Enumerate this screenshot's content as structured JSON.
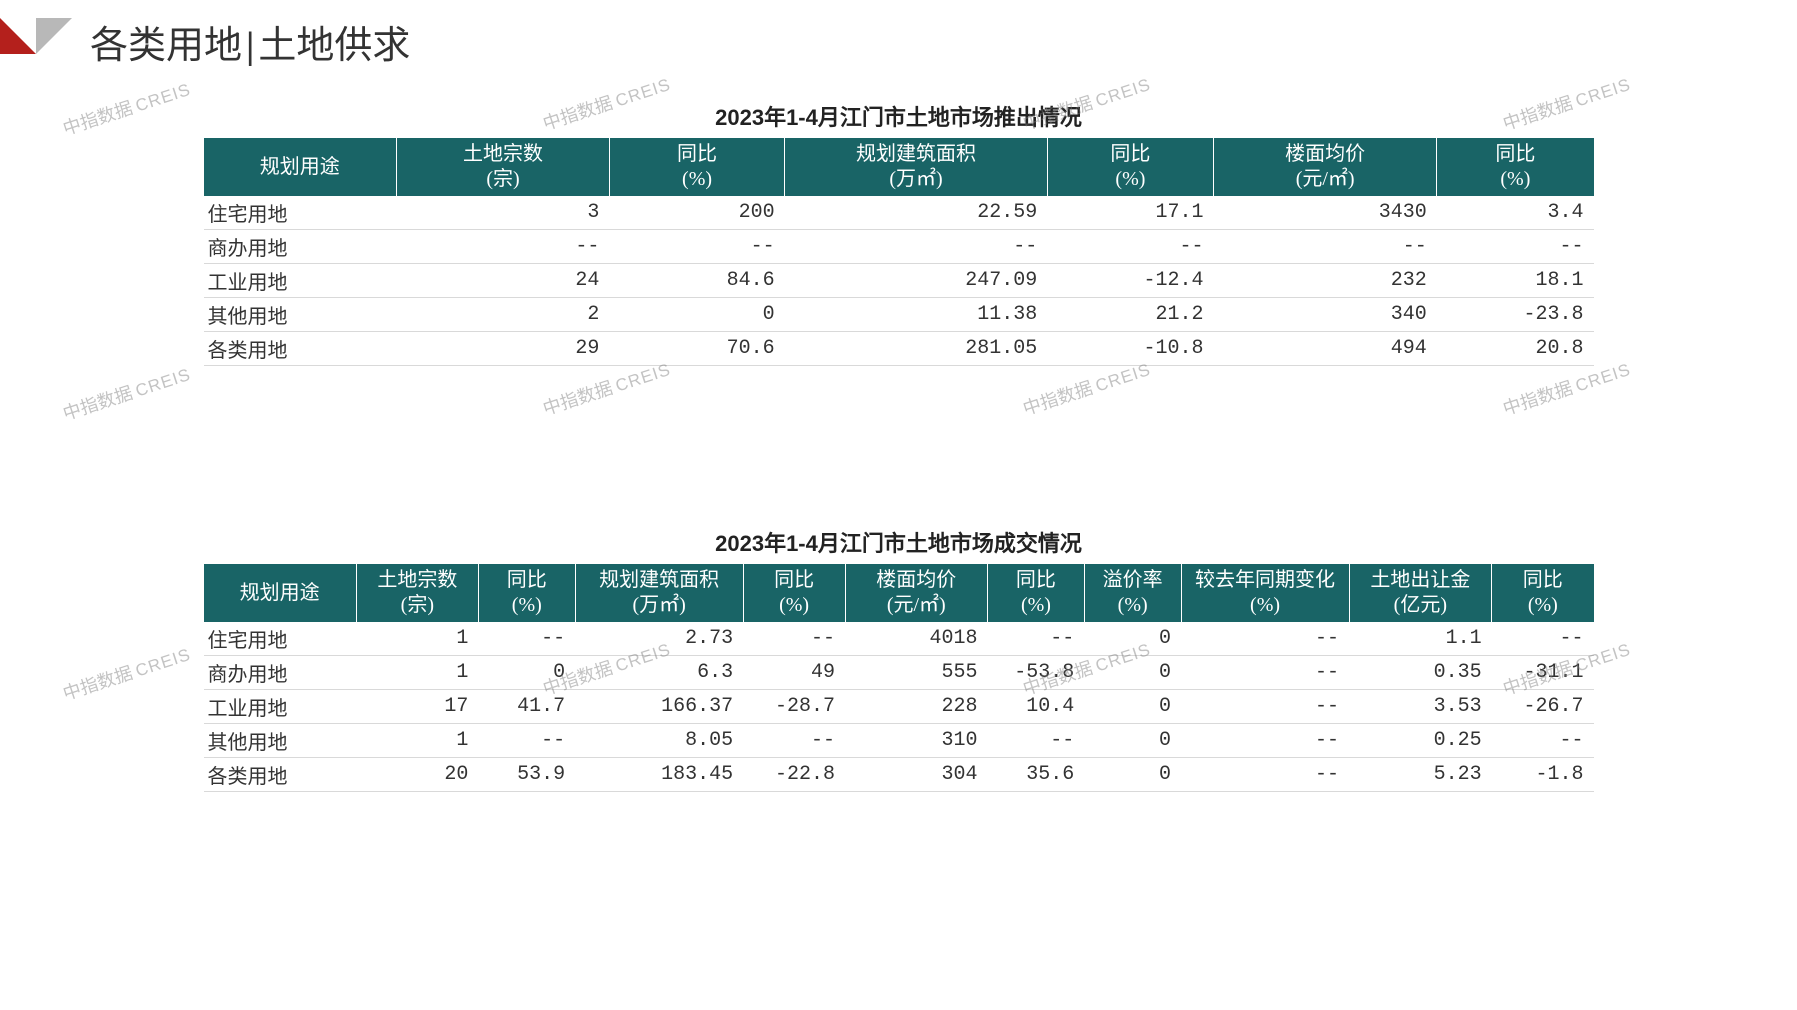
{
  "header": {
    "title_left": "各类用地",
    "title_right": "土地供求"
  },
  "watermark": {
    "cn": "中指数据",
    "en": "CREIS"
  },
  "table1": {
    "title": "2023年1-4月江门市土地市场推出情况",
    "columns": [
      {
        "l1": "规划用途",
        "l2": ""
      },
      {
        "l1": "土地宗数",
        "l2": "(宗)"
      },
      {
        "l1": "同比",
        "l2": "(%)"
      },
      {
        "l1": "规划建筑面积",
        "l2": "(万㎡)"
      },
      {
        "l1": "同比",
        "l2": "(%)"
      },
      {
        "l1": "楼面均价",
        "l2": "(元/㎡)"
      },
      {
        "l1": "同比",
        "l2": "(%)"
      }
    ],
    "col_widths": [
      "200px",
      "220px",
      "180px",
      "270px",
      "170px",
      "230px",
      "160px"
    ],
    "rows": [
      [
        "住宅用地",
        "3",
        "200",
        "22.59",
        "17.1",
        "3430",
        "3.4"
      ],
      [
        "商办用地",
        "--",
        "--",
        "--",
        "--",
        "--",
        "--"
      ],
      [
        "工业用地",
        "24",
        "84.6",
        "247.09",
        "-12.4",
        "232",
        "18.1"
      ],
      [
        "其他用地",
        "2",
        "0",
        "11.38",
        "21.2",
        "340",
        "-23.8"
      ],
      [
        "各类用地",
        "29",
        "70.6",
        "281.05",
        "-10.8",
        "494",
        "20.8"
      ]
    ]
  },
  "table2": {
    "title": "2023年1-4月江门市土地市场成交情况",
    "columns": [
      {
        "l1": "规划用途",
        "l2": ""
      },
      {
        "l1": "土地宗数",
        "l2": "(宗)"
      },
      {
        "l1": "同比",
        "l2": "(%)"
      },
      {
        "l1": "规划建筑面积",
        "l2": "(万㎡)"
      },
      {
        "l1": "同比",
        "l2": "(%)"
      },
      {
        "l1": "楼面均价",
        "l2": "(元/㎡)"
      },
      {
        "l1": "同比",
        "l2": "(%)"
      },
      {
        "l1": "溢价率",
        "l2": "(%)"
      },
      {
        "l1": "较去年同期变化",
        "l2": "(%)"
      },
      {
        "l1": "土地出让金",
        "l2": "(亿元)"
      },
      {
        "l1": "同比",
        "l2": "(%)"
      }
    ],
    "col_widths": [
      "150px",
      "120px",
      "95px",
      "165px",
      "100px",
      "140px",
      "95px",
      "95px",
      "165px",
      "140px",
      "100px"
    ],
    "rows": [
      [
        "住宅用地",
        "1",
        "--",
        "2.73",
        "--",
        "4018",
        "--",
        "0",
        "--",
        "1.1",
        "--"
      ],
      [
        "商办用地",
        "1",
        "0",
        "6.3",
        "49",
        "555",
        "-53.8",
        "0",
        "--",
        "0.35",
        "-31.1"
      ],
      [
        "工业用地",
        "17",
        "41.7",
        "166.37",
        "-28.7",
        "228",
        "10.4",
        "0",
        "--",
        "3.53",
        "-26.7"
      ],
      [
        "其他用地",
        "1",
        "--",
        "8.05",
        "--",
        "310",
        "--",
        "0",
        "--",
        "0.25",
        "--"
      ],
      [
        "各类用地",
        "20",
        "53.9",
        "183.45",
        "-22.8",
        "304",
        "35.6",
        "0",
        "--",
        "5.23",
        "-1.8"
      ]
    ]
  },
  "style": {
    "header_bg": "#196466",
    "header_fg": "#ffffff",
    "row_border": "#d9d9d9",
    "body_font_size": 20,
    "title_font_size": 22
  }
}
